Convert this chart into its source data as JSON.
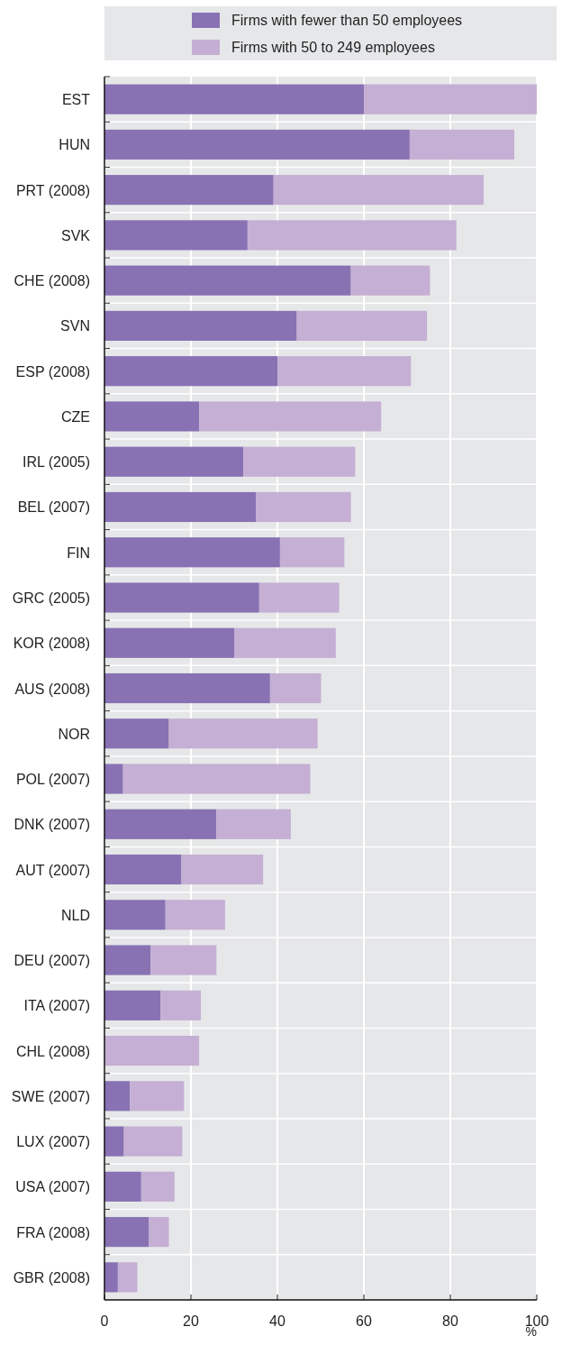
{
  "chart_data": {
    "type": "bar",
    "orientation": "horizontal",
    "stacked": true,
    "xlabel": "%",
    "categories": [
      "EST",
      "HUN",
      "PRT (2008)",
      "SVK",
      "CHE (2008)",
      "SVN",
      "ESP (2008)",
      "CZE",
      "IRL (2005)",
      "BEL (2007)",
      "FIN",
      "GRC (2005)",
      "KOR (2008)",
      "AUS (2008)",
      "NOR",
      "POL (2007)",
      "DNK (2007)",
      "AUT (2007)",
      "NLD",
      "DEU (2007)",
      "ITA (2007)",
      "CHL (2008)",
      "SWE (2007)",
      "LUX (2007)",
      "USA (2007)",
      "FRA (2008)",
      "GBR (2008)"
    ],
    "series": [
      {
        "name": "Firms with fewer than 50 employees",
        "color": "#8872b3",
        "values": [
          60,
          70.6,
          39.1,
          33.1,
          57,
          44.5,
          40,
          21.9,
          32.1,
          35,
          40.6,
          35.8,
          30,
          38.3,
          14.9,
          4.3,
          25.9,
          17.8,
          14.1,
          10.7,
          13,
          null,
          5.9,
          4.5,
          8.5,
          10.3,
          3.1
        ]
      },
      {
        "name": "Firms with 50 to 249 employees",
        "color": "#c5afd4",
        "values": [
          40,
          24.2,
          48.6,
          48.3,
          18.3,
          30.1,
          30.9,
          42.1,
          25.9,
          22,
          14.9,
          18.5,
          23.5,
          11.8,
          34.4,
          43.3,
          17.2,
          18.9,
          13.8,
          15.2,
          9.3,
          21.9,
          12.5,
          13.5,
          7.7,
          4.6,
          4.5
        ]
      }
    ],
    "xlim": [
      0,
      100
    ],
    "xticks": [
      0,
      20,
      40,
      60,
      80,
      100
    ],
    "grid": "x",
    "legend": "top"
  }
}
